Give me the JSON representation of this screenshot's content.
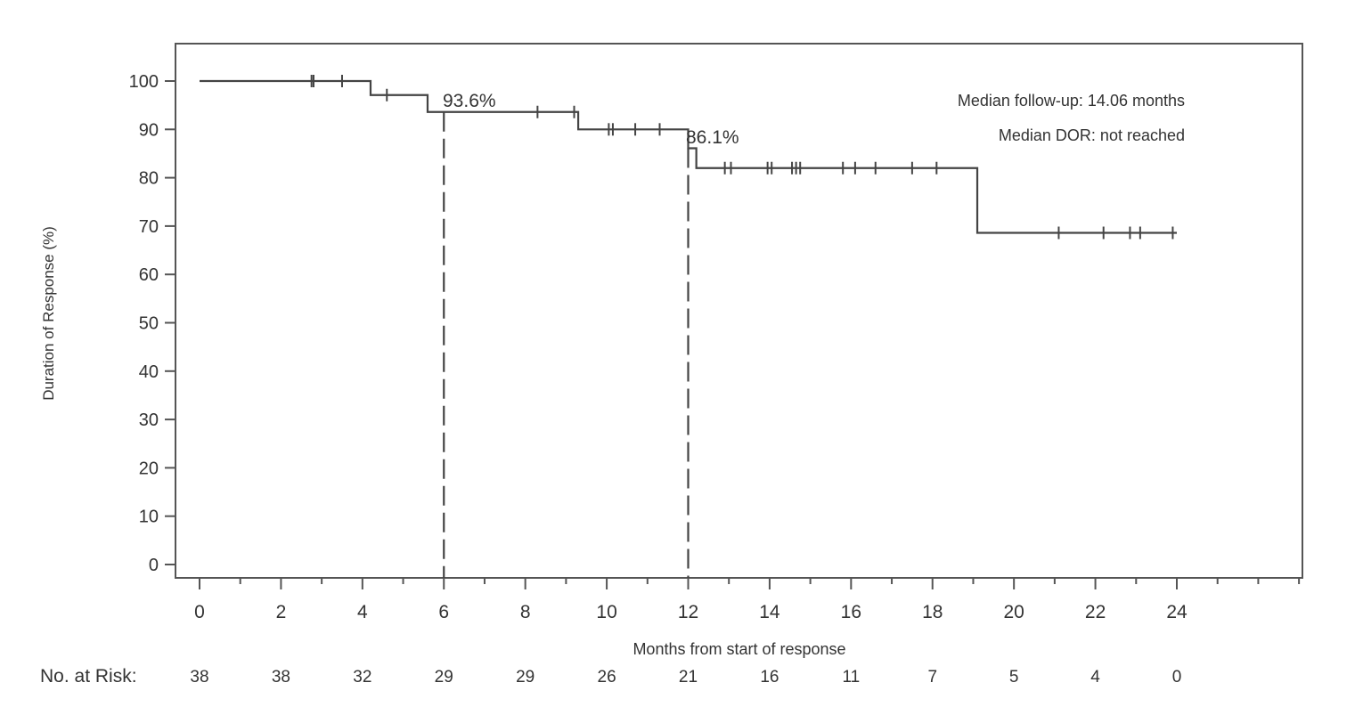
{
  "chart_data": {
    "type": "line",
    "subtype": "kaplan-meier",
    "title": "",
    "xlabel": "Months from start of response",
    "ylabel": "Duration of Response (%)",
    "xlim": [
      0,
      24
    ],
    "ylim": [
      0,
      100
    ],
    "x_ticks": [
      0,
      2,
      4,
      6,
      8,
      10,
      12,
      14,
      16,
      18,
      20,
      22,
      24
    ],
    "y_ticks": [
      0,
      10,
      20,
      30,
      40,
      50,
      60,
      70,
      80,
      90,
      100
    ],
    "grid": false,
    "series": [
      {
        "name": "Duration of Response",
        "step_points": [
          {
            "x": 0,
            "y": 100
          },
          {
            "x": 4.2,
            "y": 97.1
          },
          {
            "x": 5.6,
            "y": 93.6
          },
          {
            "x": 9.3,
            "y": 90.0
          },
          {
            "x": 12.0,
            "y": 86.1
          },
          {
            "x": 12.2,
            "y": 82.0
          },
          {
            "x": 19.1,
            "y": 68.6
          },
          {
            "x": 24.0,
            "y": 68.6
          }
        ],
        "censored_x": [
          2.75,
          2.8,
          3.5,
          4.6,
          8.3,
          9.2,
          10.05,
          10.15,
          10.7,
          11.3,
          12.9,
          13.05,
          13.95,
          14.05,
          14.55,
          14.65,
          14.75,
          15.8,
          16.1,
          16.6,
          17.5,
          18.1,
          21.1,
          22.2,
          22.85,
          23.1,
          23.9
        ]
      }
    ],
    "annotations": [
      {
        "text": "93.6%",
        "x": 6,
        "y": 93.6,
        "dashed_vline": true
      },
      {
        "text": "86.1%",
        "x": 12,
        "y": 86.1,
        "dashed_vline": true
      },
      {
        "text": "Median follow-up: 14.06 months"
      },
      {
        "text": "Median DOR: not reached"
      }
    ],
    "risk_table": {
      "label": "No. at Risk:",
      "x": [
        0,
        2,
        4,
        6,
        8,
        10,
        12,
        14,
        16,
        18,
        20,
        22,
        24
      ],
      "values": [
        38,
        38,
        32,
        29,
        29,
        26,
        21,
        16,
        11,
        7,
        5,
        4,
        0
      ]
    }
  },
  "labels": {
    "xlabel": "Months from start of response",
    "ylabel": "Duration of Response (%)",
    "median_followup": "Median follow-up: 14.06 months",
    "median_dor": "Median DOR: not reached",
    "ann6": "93.6%",
    "ann12": "86.1%",
    "risk_label": "No. at Risk:"
  }
}
